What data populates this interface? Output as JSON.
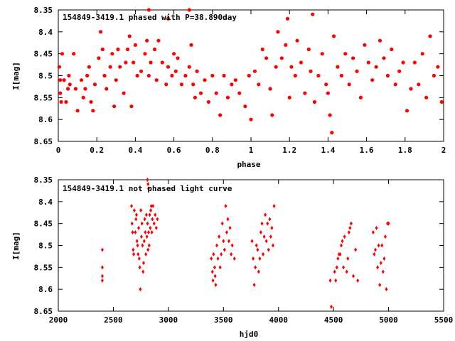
{
  "chart_data": [
    {
      "type": "scatter",
      "title": "154849-3419.1 phased with P=38.890day",
      "xlabel": "phase",
      "ylabel": "I[mag]",
      "xlim": [
        0,
        2
      ],
      "ylim": [
        8.35,
        8.65
      ],
      "y_inverted": true,
      "grid": false,
      "marker": "asterisk",
      "marker_color": "#ff0000",
      "xticks": [
        "0",
        "0.2",
        "0.4",
        "0.6",
        "0.8",
        "1",
        "1.2",
        "1.4",
        "1.6",
        "1.8",
        "2"
      ],
      "yticks": [
        "8.35",
        "8.4",
        "8.45",
        "8.5",
        "8.55",
        "8.6",
        "8.65"
      ],
      "series": [
        {
          "x": [
            0.005,
            0.01,
            0.01,
            0.015,
            0.02,
            0.03,
            0.04,
            0.05,
            0.055,
            0.06,
            0.08,
            0.09,
            0.1,
            0.12,
            0.13,
            0.14,
            0.15,
            0.16,
            0.17,
            0.18,
            0.19,
            0.21,
            0.22,
            0.23,
            0.24,
            0.25,
            0.27,
            0.28,
            0.29,
            0.3,
            0.31,
            0.32,
            0.34,
            0.35,
            0.36,
            0.37,
            0.38,
            0.39,
            0.4,
            0.41,
            0.43,
            0.45,
            0.46,
            0.47,
            0.48,
            0.5,
            0.51,
            0.52,
            0.54,
            0.56,
            0.57,
            0.59,
            0.6,
            0.61,
            0.62,
            0.64,
            0.66,
            0.68,
            0.69,
            0.7,
            0.71,
            0.72,
            0.74,
            0.76,
            0.78,
            0.8,
            0.82,
            0.84,
            0.86,
            0.88,
            0.9,
            0.92,
            0.94,
            0.97,
            0.99,
            1.0,
            1.02,
            1.04,
            1.06,
            1.08,
            1.1,
            1.11,
            1.13,
            1.14,
            1.16,
            1.18,
            1.2,
            1.21,
            1.23,
            1.24,
            1.26,
            1.28,
            1.3,
            1.31,
            1.33,
            1.35,
            1.37,
            1.39,
            1.4,
            1.41,
            1.43,
            1.45,
            1.47,
            1.49,
            1.51,
            1.53,
            1.55,
            1.57,
            1.59,
            1.61,
            1.63,
            1.65,
            1.67,
            1.69,
            1.71,
            1.73,
            1.75,
            1.77,
            1.79,
            1.81,
            1.83,
            1.85,
            1.87,
            1.89,
            1.91,
            1.93,
            1.95,
            1.97,
            1.99,
            0.47,
            0.57,
            0.68,
            1.19,
            1.32,
            1.42
          ],
          "y": [
            8.48,
            8.54,
            8.51,
            8.56,
            8.45,
            8.51,
            8.56,
            8.53,
            8.5,
            8.52,
            8.45,
            8.53,
            8.58,
            8.51,
            8.55,
            8.53,
            8.5,
            8.48,
            8.56,
            8.58,
            8.52,
            8.46,
            8.4,
            8.44,
            8.5,
            8.53,
            8.48,
            8.45,
            8.57,
            8.51,
            8.44,
            8.48,
            8.54,
            8.47,
            8.44,
            8.41,
            8.57,
            8.47,
            8.43,
            8.5,
            8.49,
            8.45,
            8.42,
            8.5,
            8.47,
            8.44,
            8.51,
            8.42,
            8.47,
            8.52,
            8.48,
            8.5,
            8.45,
            8.49,
            8.46,
            8.52,
            8.5,
            8.48,
            8.43,
            8.52,
            8.55,
            8.49,
            8.54,
            8.51,
            8.56,
            8.5,
            8.54,
            8.59,
            8.5,
            8.55,
            8.52,
            8.51,
            8.54,
            8.57,
            8.5,
            8.6,
            8.49,
            8.52,
            8.44,
            8.46,
            8.53,
            8.59,
            8.48,
            8.4,
            8.46,
            8.43,
            8.55,
            8.48,
            8.5,
            8.42,
            8.47,
            8.54,
            8.44,
            8.49,
            8.56,
            8.5,
            8.45,
            8.52,
            8.54,
            8.59,
            8.41,
            8.48,
            8.5,
            8.45,
            8.52,
            8.46,
            8.49,
            8.55,
            8.43,
            8.47,
            8.51,
            8.48,
            8.42,
            8.46,
            8.5,
            8.44,
            8.52,
            8.49,
            8.47,
            8.58,
            8.53,
            8.47,
            8.52,
            8.45,
            8.55,
            8.41,
            8.5,
            8.48,
            8.56,
            8.35,
            8.37,
            8.35,
            8.37,
            8.36,
            8.63
          ]
        }
      ]
    },
    {
      "type": "scatter",
      "title": "154849-3419.1 not phased light curve",
      "xlabel": "hjd0",
      "ylabel": "I[mag]",
      "xlim": [
        2000,
        5500
      ],
      "ylim": [
        8.35,
        8.65
      ],
      "y_inverted": true,
      "grid": false,
      "marker": "diamond",
      "marker_color": "#ff0000",
      "xticks": [
        "2000",
        "2500",
        "3000",
        "3500",
        "4000",
        "4500",
        "5000",
        "5500"
      ],
      "yticks": [
        "8.35",
        "8.4",
        "8.45",
        "8.5",
        "8.55",
        "8.6",
        "8.65"
      ],
      "series": [
        {
          "x": [
            2400,
            2400,
            2400,
            2400,
            2665,
            2670,
            2675,
            2680,
            2685,
            2690,
            2700,
            2705,
            2710,
            2715,
            2720,
            2725,
            2730,
            2735,
            2740,
            2745,
            2750,
            2755,
            2760,
            2765,
            2770,
            2775,
            2780,
            2785,
            2790,
            2795,
            2800,
            2805,
            2810,
            2815,
            2820,
            2825,
            2830,
            2835,
            2840,
            2845,
            2850,
            2855,
            2860,
            2870,
            2880,
            2890,
            2900,
            2810,
            2815,
            2820,
            3390,
            3400,
            3405,
            3410,
            3420,
            3425,
            3430,
            3440,
            3450,
            3460,
            3470,
            3480,
            3490,
            3500,
            3510,
            3520,
            3530,
            3540,
            3550,
            3560,
            3570,
            3580,
            3600,
            3760,
            3770,
            3780,
            3790,
            3800,
            3810,
            3820,
            3830,
            3840,
            3850,
            3860,
            3870,
            3880,
            3890,
            3900,
            3910,
            3920,
            3930,
            3940,
            3950,
            3960,
            4470,
            4480,
            4510,
            4530,
            4550,
            4570,
            4590,
            4600,
            4630,
            4660,
            4680,
            4700,
            4860,
            4880,
            4900,
            4920,
            4940,
            4960,
            4980,
            5000
          ],
          "y": [
            8.51,
            8.55,
            8.57,
            8.58,
            8.41,
            8.45,
            8.47,
            8.51,
            8.52,
            8.42,
            8.47,
            8.44,
            8.43,
            8.49,
            8.5,
            8.52,
            8.46,
            8.53,
            8.55,
            8.6,
            8.42,
            8.48,
            8.45,
            8.5,
            8.56,
            8.54,
            8.49,
            8.44,
            8.47,
            8.52,
            8.43,
            8.48,
            8.45,
            8.51,
            8.47,
            8.5,
            8.43,
            8.46,
            8.42,
            8.41,
            8.47,
            8.44,
            8.41,
            8.45,
            8.43,
            8.46,
            8.44,
            8.35,
            8.36,
            8.37,
            8.53,
            8.56,
            8.58,
            8.52,
            8.55,
            8.57,
            8.59,
            8.5,
            8.53,
            8.48,
            8.55,
            8.52,
            8.45,
            8.49,
            8.51,
            8.41,
            8.47,
            8.44,
            8.49,
            8.46,
            8.52,
            8.5,
            8.53,
            8.49,
            8.53,
            8.59,
            8.55,
            8.5,
            8.51,
            8.56,
            8.53,
            8.47,
            8.45,
            8.52,
            8.48,
            8.43,
            8.49,
            8.45,
            8.51,
            8.44,
            8.48,
            8.46,
            8.5,
            8.41,
            8.58,
            8.64,
            8.56,
            8.55,
            8.52,
            8.5,
            8.55,
            8.48,
            8.53,
            8.45,
            8.57,
            8.51,
            8.47,
            8.51,
            8.55,
            8.59,
            8.5,
            8.53,
            8.6,
            8.45
          ],
          "extra_x": [
            4520,
            4540,
            4560,
            4580,
            4620,
            4640,
            4650,
            4720,
            4870,
            4890,
            4910,
            4930,
            4950,
            4970,
            4990
          ],
          "extra_y": [
            8.58,
            8.53,
            8.52,
            8.49,
            8.56,
            8.47,
            8.46,
            8.58,
            8.52,
            8.46,
            8.5,
            8.54,
            8.56,
            8.48,
            8.45
          ]
        }
      ]
    }
  ]
}
